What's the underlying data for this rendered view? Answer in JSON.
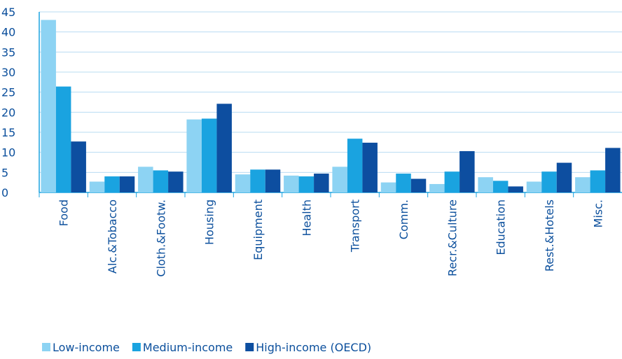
{
  "chart_data": {
    "type": "bar",
    "categories": [
      "Food",
      "Alc.&Tobacco",
      "Cloth.&Footw.",
      "Housing",
      "Equipment",
      "Health",
      "Transport",
      "Comm.",
      "Recr.&Culture",
      "Education",
      "Rest.&Hotels",
      "Misc."
    ],
    "series": [
      {
        "name": "Low-income",
        "color": "#8dd3f3",
        "values": [
          43,
          2.7,
          6.4,
          18.2,
          4.5,
          4.2,
          6.4,
          2.5,
          2.1,
          3.8,
          2.7,
          3.8
        ]
      },
      {
        "name": "Medium-income",
        "color": "#1aa3e0",
        "values": [
          26.4,
          4,
          5.5,
          18.4,
          5.7,
          4,
          13.4,
          4.7,
          5.2,
          2.9,
          5.2,
          5.5
        ]
      },
      {
        "name": "High-income (OECD)",
        "color": "#0d4ea0",
        "values": [
          12.7,
          4,
          5.2,
          22.1,
          5.7,
          4.7,
          12.4,
          3.4,
          10.3,
          1.5,
          7.4,
          11.1
        ]
      }
    ],
    "ylim": [
      0,
      45
    ],
    "yticks": [
      0,
      5,
      10,
      15,
      20,
      25,
      30,
      35,
      40,
      45
    ],
    "grid": true,
    "legend": "bottom"
  }
}
